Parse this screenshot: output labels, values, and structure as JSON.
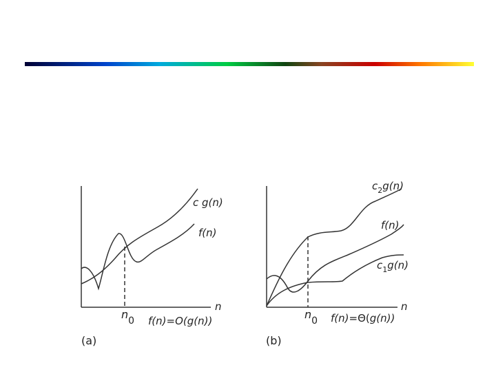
{
  "slide": {
    "rainbow_colors": [
      "#000033",
      "#0044cc",
      "#00aadd",
      "#00cc44",
      "#114411",
      "#884422",
      "#cc0000",
      "#ff7700",
      "#ffff33"
    ]
  },
  "panel_a": {
    "tag": "(a)",
    "axis_n": "n",
    "upper_curve_label": {
      "c": "c",
      "g": "g(",
      "n": "n",
      "close": ")"
    },
    "f_label": {
      "f": "f(",
      "n": "n",
      "close": ")"
    },
    "n0_label": {
      "n": "n",
      "sub": "0"
    },
    "relation": {
      "f": "f(",
      "n1": "n",
      "mid": ")=",
      "O": "O(",
      "g": "g(",
      "n2": "n",
      "close": "))"
    }
  },
  "panel_b": {
    "tag": "(b)",
    "axis_n": "n",
    "upper_curve_label": {
      "c": "c",
      "sub": "2",
      "g": "g(",
      "n": "n",
      "close": ")"
    },
    "f_label": {
      "f": "f(",
      "n": "n",
      "close": ")"
    },
    "lower_curve_label": {
      "c": "c",
      "sub": "1",
      "g": "g(",
      "n": "n",
      "close": ")"
    },
    "n0_label": {
      "n": "n",
      "sub": "0"
    },
    "relation": {
      "f": "f(",
      "n1": "n",
      "mid": ")=",
      "Theta": "Θ(",
      "g": "g(",
      "n2": "n",
      "close": "))"
    }
  }
}
